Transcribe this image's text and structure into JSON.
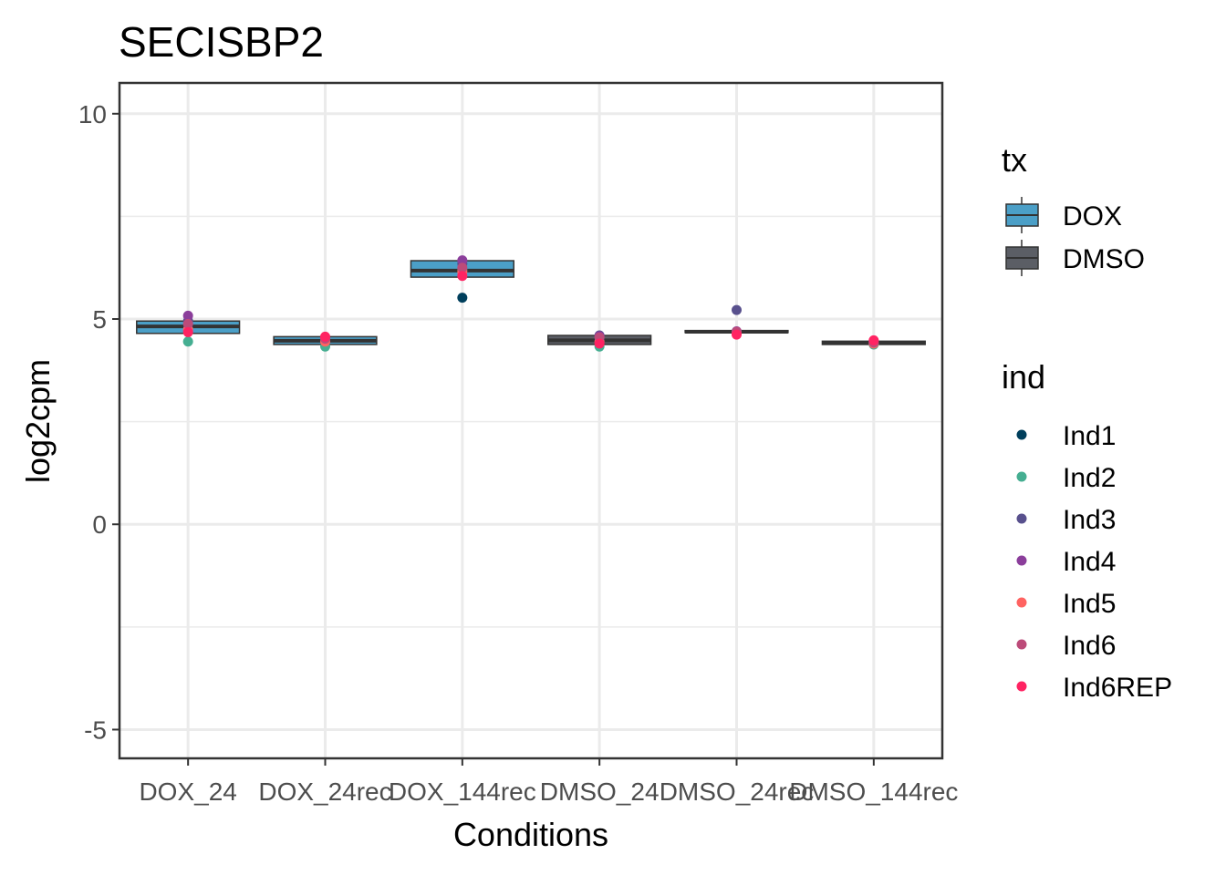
{
  "chart_data": {
    "type": "box",
    "title": "SECISBP2",
    "xlabel": "Conditions",
    "ylabel": "log2cpm",
    "ylim": [
      -5.7,
      10.75
    ],
    "yticks": [
      -5,
      0,
      5,
      10
    ],
    "yticks_labels": [
      "-5",
      "0",
      "5",
      "10"
    ],
    "grid": true,
    "categories": [
      "DOX_24",
      "DOX_24rec",
      "DOX_144rec",
      "DMSO_24",
      "DMSO_24rec",
      "DMSO_144rec"
    ],
    "boxes": [
      {
        "category": "DOX_24",
        "tx": "DOX",
        "q1": 4.65,
        "median": 4.82,
        "q3": 4.95,
        "whisker_low": 4.65,
        "whisker_high": 4.95
      },
      {
        "category": "DOX_24rec",
        "tx": "DOX",
        "q1": 4.38,
        "median": 4.47,
        "q3": 4.57,
        "whisker_low": 4.38,
        "whisker_high": 4.57
      },
      {
        "category": "DOX_144rec",
        "tx": "DOX",
        "q1": 6.02,
        "median": 6.18,
        "q3": 6.42,
        "whisker_low": 6.02,
        "whisker_high": 6.42,
        "outliers": [
          5.52
        ]
      },
      {
        "category": "DMSO_24",
        "tx": "DMSO",
        "q1": 4.38,
        "median": 4.48,
        "q3": 4.6,
        "whisker_low": 4.38,
        "whisker_high": 4.6
      },
      {
        "category": "DMSO_24rec",
        "tx": "DMSO",
        "q1": 4.67,
        "median": 4.69,
        "q3": 4.72,
        "whisker_low": 4.67,
        "whisker_high": 4.72
      },
      {
        "category": "DMSO_144rec",
        "tx": "DMSO",
        "q1": 4.38,
        "median": 4.42,
        "q3": 4.46,
        "whisker_low": 4.38,
        "whisker_high": 4.46
      }
    ],
    "points": [
      {
        "category": "DOX_24",
        "ind": "Ind1",
        "value": 4.8
      },
      {
        "category": "DOX_24",
        "ind": "Ind2",
        "value": 4.45
      },
      {
        "category": "DOX_24",
        "ind": "Ind3",
        "value": 4.95
      },
      {
        "category": "DOX_24",
        "ind": "Ind4",
        "value": 5.08
      },
      {
        "category": "DOX_24",
        "ind": "Ind5",
        "value": 4.75
      },
      {
        "category": "DOX_24",
        "ind": "Ind6",
        "value": 4.88
      },
      {
        "category": "DOX_24",
        "ind": "Ind6REP",
        "value": 4.68
      },
      {
        "category": "DOX_24rec",
        "ind": "Ind1",
        "value": 4.48
      },
      {
        "category": "DOX_24rec",
        "ind": "Ind2",
        "value": 4.33
      },
      {
        "category": "DOX_24rec",
        "ind": "Ind3",
        "value": 4.5
      },
      {
        "category": "DOX_24rec",
        "ind": "Ind4",
        "value": 4.55
      },
      {
        "category": "DOX_24rec",
        "ind": "Ind5",
        "value": 4.45
      },
      {
        "category": "DOX_24rec",
        "ind": "Ind6",
        "value": 4.52
      },
      {
        "category": "DOX_24rec",
        "ind": "Ind6REP",
        "value": 4.57
      },
      {
        "category": "DOX_144rec",
        "ind": "Ind1",
        "value": 5.52
      },
      {
        "category": "DOX_144rec",
        "ind": "Ind2",
        "value": 6.2
      },
      {
        "category": "DOX_144rec",
        "ind": "Ind3",
        "value": 6.35
      },
      {
        "category": "DOX_144rec",
        "ind": "Ind4",
        "value": 6.43
      },
      {
        "category": "DOX_144rec",
        "ind": "Ind5",
        "value": 6.15
      },
      {
        "category": "DOX_144rec",
        "ind": "Ind6",
        "value": 6.25
      },
      {
        "category": "DOX_144rec",
        "ind": "Ind6REP",
        "value": 6.05
      },
      {
        "category": "DMSO_24",
        "ind": "Ind1",
        "value": 4.5
      },
      {
        "category": "DMSO_24",
        "ind": "Ind2",
        "value": 4.33
      },
      {
        "category": "DMSO_24",
        "ind": "Ind3",
        "value": 4.6
      },
      {
        "category": "DMSO_24",
        "ind": "Ind4",
        "value": 4.58
      },
      {
        "category": "DMSO_24",
        "ind": "Ind5",
        "value": 4.45
      },
      {
        "category": "DMSO_24",
        "ind": "Ind6",
        "value": 4.55
      },
      {
        "category": "DMSO_24",
        "ind": "Ind6REP",
        "value": 4.4
      },
      {
        "category": "DMSO_24rec",
        "ind": "Ind1",
        "value": 4.68
      },
      {
        "category": "DMSO_24rec",
        "ind": "Ind2",
        "value": 4.66
      },
      {
        "category": "DMSO_24rec",
        "ind": "Ind3",
        "value": 5.22
      },
      {
        "category": "DMSO_24rec",
        "ind": "Ind4",
        "value": 4.7
      },
      {
        "category": "DMSO_24rec",
        "ind": "Ind5",
        "value": 4.64
      },
      {
        "category": "DMSO_24rec",
        "ind": "Ind6",
        "value": 4.69
      },
      {
        "category": "DMSO_24rec",
        "ind": "Ind6REP",
        "value": 4.62
      },
      {
        "category": "DMSO_144rec",
        "ind": "Ind1",
        "value": 4.42
      },
      {
        "category": "DMSO_144rec",
        "ind": "Ind2",
        "value": 4.38
      },
      {
        "category": "DMSO_144rec",
        "ind": "Ind3",
        "value": 4.44
      },
      {
        "category": "DMSO_144rec",
        "ind": "Ind4",
        "value": 4.46
      },
      {
        "category": "DMSO_144rec",
        "ind": "Ind5",
        "value": 4.4
      },
      {
        "category": "DMSO_144rec",
        "ind": "Ind6",
        "value": 4.43
      },
      {
        "category": "DMSO_144rec",
        "ind": "Ind6REP",
        "value": 4.48
      }
    ],
    "legend": {
      "placement": "right",
      "tx": {
        "title": "tx",
        "items": [
          {
            "label": "DOX",
            "color": "#4B9FC7"
          },
          {
            "label": "DMSO",
            "color": "#5B5E65"
          }
        ]
      },
      "ind": {
        "title": "ind",
        "items": [
          {
            "label": "Ind1",
            "color": "#003F5C"
          },
          {
            "label": "Ind2",
            "color": "#45AE91"
          },
          {
            "label": "Ind3",
            "color": "#58508D"
          },
          {
            "label": "Ind4",
            "color": "#8B3E9B"
          },
          {
            "label": "Ind5",
            "color": "#FF6361"
          },
          {
            "label": "Ind6",
            "color": "#BC4B79"
          },
          {
            "label": "Ind6REP",
            "color": "#FF2362"
          }
        ]
      }
    }
  }
}
